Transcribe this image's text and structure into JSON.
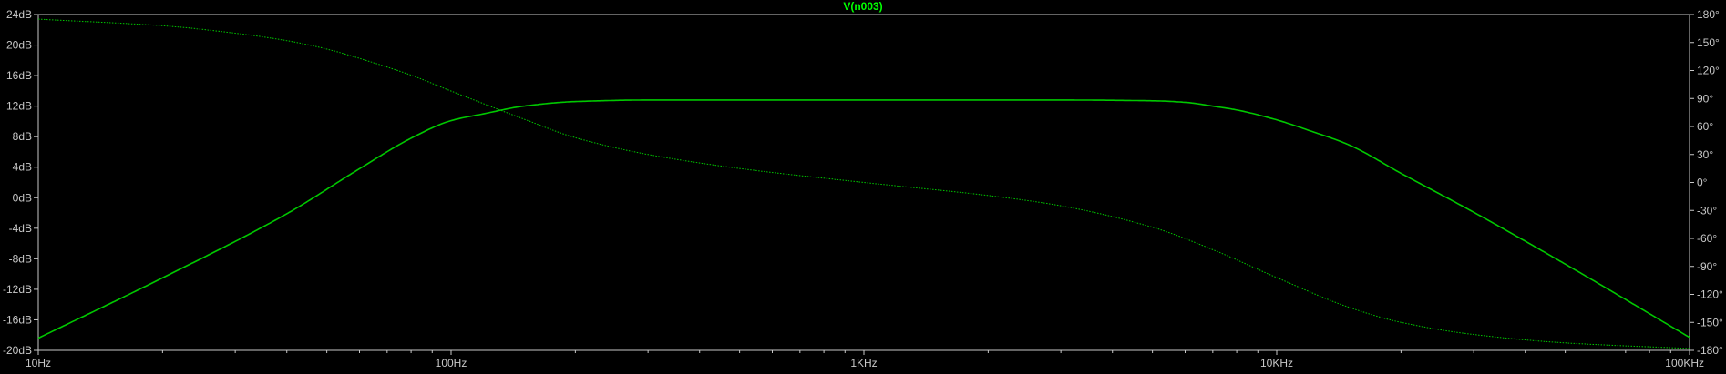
{
  "chart_data": {
    "type": "line",
    "title": "V(n003)",
    "x_scale": "log",
    "xlim": [
      10,
      100000
    ],
    "x_ticks": [
      {
        "value": 10,
        "label": "10Hz"
      },
      {
        "value": 100,
        "label": "100Hz"
      },
      {
        "value": 1000,
        "label": "1KHz"
      },
      {
        "value": 10000,
        "label": "10KHz"
      },
      {
        "value": 100000,
        "label": "100KHz"
      }
    ],
    "ylim_left": [
      -20,
      24
    ],
    "y_ticks_left": [
      {
        "value": 24,
        "label": "24dB"
      },
      {
        "value": 20,
        "label": "20dB"
      },
      {
        "value": 16,
        "label": "16dB"
      },
      {
        "value": 12,
        "label": "12dB"
      },
      {
        "value": 8,
        "label": "8dB"
      },
      {
        "value": 4,
        "label": "4dB"
      },
      {
        "value": 0,
        "label": "0dB"
      },
      {
        "value": -4,
        "label": "-4dB"
      },
      {
        "value": -8,
        "label": "-8dB"
      },
      {
        "value": -12,
        "label": "-12dB"
      },
      {
        "value": -16,
        "label": "-16dB"
      },
      {
        "value": -20,
        "label": "-20dB"
      }
    ],
    "ylim_right": [
      -180,
      180
    ],
    "y_ticks_right": [
      {
        "value": 180,
        "label": "180°"
      },
      {
        "value": 150,
        "label": "150°"
      },
      {
        "value": 120,
        "label": "120°"
      },
      {
        "value": 90,
        "label": "90°"
      },
      {
        "value": 60,
        "label": "60°"
      },
      {
        "value": 30,
        "label": "30°"
      },
      {
        "value": 0,
        "label": "0°"
      },
      {
        "value": -30,
        "label": "-30°"
      },
      {
        "value": -60,
        "label": "-60°"
      },
      {
        "value": -90,
        "label": "-90°"
      },
      {
        "value": -120,
        "label": "-120°"
      },
      {
        "value": -150,
        "label": "-150°"
      },
      {
        "value": -180,
        "label": "-180°"
      }
    ],
    "grid": false,
    "series": [
      {
        "name": "V(n003)",
        "kind": "magnitude_dB",
        "axis": "left",
        "style": "solid",
        "color": "#00c800",
        "x": [
          10,
          20,
          40,
          60,
          80,
          100,
          120,
          150,
          200,
          300,
          500,
          1000,
          2000,
          3000,
          5000,
          6000,
          7000,
          8000,
          10000,
          12000,
          15000,
          20000,
          30000,
          50000,
          100000
        ],
        "y": [
          -18.4,
          -10.5,
          -2.1,
          3.8,
          7.8,
          10.1,
          11.0,
          12.0,
          12.6,
          12.8,
          12.8,
          12.8,
          12.8,
          12.8,
          12.7,
          12.5,
          12.0,
          11.5,
          10.2,
          8.8,
          6.9,
          3.2,
          -1.9,
          -8.7,
          -18.3
        ]
      },
      {
        "name": "phase",
        "kind": "phase_deg",
        "axis": "right",
        "style": "dotted",
        "color": "#00c800",
        "x": [
          10,
          20,
          30,
          40,
          50,
          60,
          80,
          100,
          150,
          200,
          300,
          500,
          1000,
          2000,
          3000,
          5000,
          7000,
          10000,
          15000,
          20000,
          30000,
          50000,
          100000
        ],
        "y": [
          175,
          168,
          160,
          152,
          143,
          133,
          115,
          98,
          68,
          48,
          30,
          15,
          0,
          -14,
          -25,
          -48,
          -72,
          -102,
          -134,
          -150,
          -163,
          -172,
          -178
        ]
      }
    ]
  }
}
